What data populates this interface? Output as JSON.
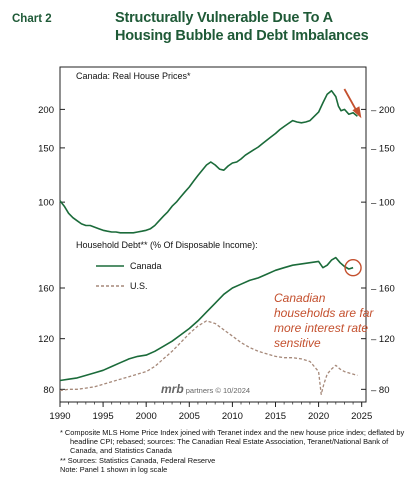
{
  "header": {
    "chart_label": "Chart 2",
    "title_line1": "Structurally Vulnerable Due To A",
    "title_line2": "Housing Bubble and Debt Imbalances"
  },
  "colors": {
    "green": "#1b6b3a",
    "us": "#a6897a",
    "annotation": "#c4502e",
    "title": "#1f5a37"
  },
  "chart_data": [
    {
      "type": "line",
      "title": "Canada: Real House Prices*",
      "scale": "log",
      "ylim": [
        80,
        240
      ],
      "yticks": [
        100,
        150,
        200
      ],
      "xlim": [
        1990,
        2025.5
      ],
      "series": [
        {
          "name": "",
          "x": [
            1990.0,
            1990.5,
            1991.0,
            1991.5,
            1992.0,
            1992.5,
            1993.0,
            1993.5,
            1994.0,
            1994.5,
            1995.0,
            1995.5,
            1996.0,
            1996.5,
            1997.0,
            1997.5,
            1998.0,
            1998.5,
            1999.0,
            1999.5,
            2000.0,
            2000.5,
            2001.0,
            2001.5,
            2002.0,
            2002.5,
            2003.0,
            2003.5,
            2004.0,
            2004.5,
            2005.0,
            2005.5,
            2006.0,
            2006.5,
            2007.0,
            2007.5,
            2008.0,
            2008.5,
            2009.0,
            2009.5,
            2010.0,
            2010.5,
            2011.0,
            2011.5,
            2012.0,
            2012.5,
            2013.0,
            2013.5,
            2014.0,
            2014.5,
            2015.0,
            2015.5,
            2016.0,
            2016.5,
            2017.0,
            2017.5,
            2018.0,
            2018.5,
            2019.0,
            2019.5,
            2020.0,
            2020.5,
            2021.0,
            2021.5,
            2022.0,
            2022.3,
            2022.6,
            2023.0,
            2023.5,
            2024.0,
            2024.5
          ],
          "values": [
            101,
            97,
            92,
            89,
            87,
            85,
            84,
            84,
            83,
            82,
            81,
            80.5,
            80,
            80,
            79.5,
            79.5,
            79.5,
            79.5,
            80,
            80.5,
            81,
            82,
            84,
            87,
            90,
            93,
            97,
            100,
            104,
            108,
            112,
            117,
            122,
            127,
            132,
            135,
            132,
            128,
            127,
            131,
            134,
            135,
            138,
            142,
            145,
            148,
            151,
            155,
            159,
            163,
            167,
            172,
            176,
            180,
            184,
            182,
            181,
            182,
            184,
            190,
            196,
            210,
            224,
            230,
            220,
            205,
            198,
            200,
            193,
            195,
            190
          ]
        }
      ],
      "annotations": [
        "arrow-down-at-end"
      ]
    },
    {
      "type": "line",
      "title": "Household Debt** (% Of Disposable Income):",
      "ylim": [
        70,
        190
      ],
      "yticks": [
        80,
        120,
        160
      ],
      "xlim": [
        1990,
        2025.5
      ],
      "xticks": [
        1990,
        1995,
        2000,
        2005,
        2010,
        2015,
        2020,
        2025
      ],
      "legend": "top-left",
      "series": [
        {
          "name": "Canada",
          "style": "solid",
          "x": [
            1990.0,
            1991.0,
            1992.0,
            1993.0,
            1994.0,
            1995.0,
            1996.0,
            1997.0,
            1998.0,
            1999.0,
            2000.0,
            2001.0,
            2002.0,
            2003.0,
            2004.0,
            2005.0,
            2006.0,
            2007.0,
            2008.0,
            2009.0,
            2010.0,
            2011.0,
            2012.0,
            2013.0,
            2014.0,
            2015.0,
            2016.0,
            2017.0,
            2018.0,
            2019.0,
            2020.0,
            2020.5,
            2021.0,
            2021.5,
            2022.0,
            2022.5,
            2023.0,
            2023.5,
            2024.0
          ],
          "values": [
            87,
            88,
            89,
            91,
            93,
            95,
            98,
            101,
            104,
            106,
            107,
            110,
            114,
            118,
            123,
            128,
            134,
            141,
            148,
            155,
            160,
            163,
            166,
            168,
            171,
            174,
            176,
            178,
            179,
            180,
            181,
            176,
            178,
            182,
            184,
            180,
            177,
            175,
            176
          ]
        },
        {
          "name": "U.S.",
          "style": "dashed",
          "x": [
            1990.0,
            1991.0,
            1992.0,
            1993.0,
            1994.0,
            1995.0,
            1996.0,
            1997.0,
            1998.0,
            1999.0,
            2000.0,
            2001.0,
            2002.0,
            2003.0,
            2004.0,
            2005.0,
            2006.0,
            2007.0,
            2008.0,
            2009.0,
            2010.0,
            2011.0,
            2012.0,
            2013.0,
            2014.0,
            2015.0,
            2016.0,
            2017.0,
            2018.0,
            2019.0,
            2020.0,
            2020.3,
            2020.6,
            2021.0,
            2021.5,
            2022.0,
            2022.5,
            2023.0,
            2023.5,
            2024.0,
            2024.5
          ],
          "values": [
            79,
            80,
            80,
            81,
            82,
            84,
            86,
            88,
            90,
            92,
            94,
            98,
            104,
            110,
            117,
            124,
            130,
            134,
            132,
            127,
            122,
            117,
            113,
            110,
            108,
            106,
            105,
            105,
            104,
            102,
            94,
            76,
            84,
            92,
            96,
            99,
            96,
            94,
            93,
            92,
            91
          ]
        }
      ],
      "annotations": [
        "circle-at-latest-canada-value"
      ]
    }
  ],
  "annotation_text": {
    "line1": "Canadian",
    "line2": "households are far",
    "line3": "more interest rate",
    "line4": "sensitive"
  },
  "watermark": {
    "brand": "mrb",
    "rest": " partners © 10/2024"
  },
  "footnotes": {
    "note1": "* Composite MLS Home Price Index joined with Teranet index and the new house price index; deflated by headline CPI; rebased; sources: The Canadian Real Estate Association, Teranet/National Bank of Canada, and Statistics Canada",
    "note2": "** Sources: Statistics Canada, Federal Reserve",
    "note3": "Note: Panel 1 shown in log scale"
  }
}
